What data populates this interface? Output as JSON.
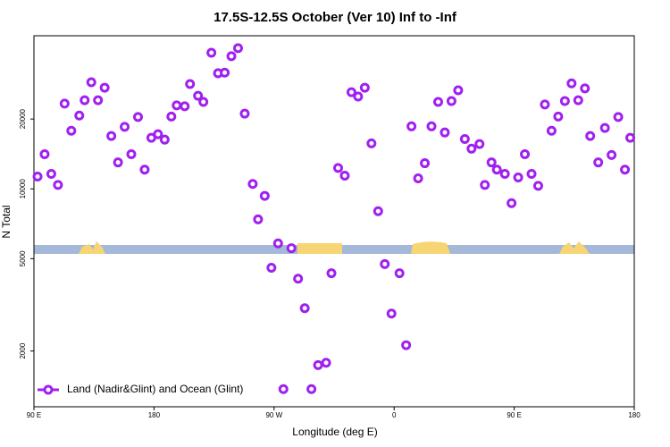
{
  "chart_data": {
    "type": "scatter",
    "title": "17.5S-12.5S October (Ver 10)   Inf to -Inf",
    "x_label": "Longitude (deg E)",
    "y_label": "N Total",
    "log_y": true,
    "xlim": [
      90,
      540
    ],
    "ylim": [
      1150,
      45700
    ],
    "xticks": [
      {
        "value": 90,
        "label": "90 E"
      },
      {
        "value": 180,
        "label": "180"
      },
      {
        "value": 270,
        "label": "90 W"
      },
      {
        "value": 360,
        "label": "0"
      },
      {
        "value": 450,
        "label": "90 E"
      },
      {
        "value": 540,
        "label": "180"
      }
    ],
    "yticks": [
      2000,
      5000,
      10000,
      20000
    ],
    "legend": "bottom-left",
    "x": [
      92.7,
      98,
      103,
      108,
      113,
      118,
      124,
      128,
      133,
      138,
      143,
      148,
      153,
      158,
      163,
      168,
      173,
      178,
      183,
      188,
      193,
      197,
      203,
      207,
      213,
      217,
      223,
      228,
      233,
      238,
      243,
      248,
      254,
      258,
      263,
      268,
      273,
      277,
      283,
      288,
      293,
      298,
      303,
      309,
      313,
      318,
      323,
      328,
      333,
      338,
      343,
      348,
      353,
      358,
      364,
      369,
      373,
      378,
      383,
      388,
      393,
      398,
      403,
      408,
      413,
      418,
      424,
      428,
      433,
      437,
      443,
      448,
      453,
      458,
      463,
      468,
      473,
      478,
      483,
      488,
      493,
      498,
      503,
      507,
      513,
      518,
      523,
      528,
      533,
      537
    ],
    "series": [
      {
        "name": "Land (Nadir&Glint) and Ocean (Glint)",
        "color": "#a020f0",
        "values": [
          11300,
          14100,
          11600,
          10400,
          23300,
          17800,
          20700,
          24100,
          28800,
          24100,
          27300,
          16900,
          13000,
          18500,
          14100,
          20400,
          12100,
          16600,
          17200,
          16300,
          20500,
          22900,
          22700,
          28300,
          25200,
          23700,
          38600,
          31500,
          31700,
          37300,
          40400,
          21100,
          10500,
          7390,
          9330,
          4570,
          5820,
          1370,
          5550,
          4100,
          3060,
          1370,
          1740,
          1780,
          4330,
          12300,
          11400,
          26100,
          25000,
          27300,
          15700,
          8010,
          4740,
          2900,
          4330,
          2120,
          18600,
          11100,
          12900,
          18600,
          23700,
          17500,
          23900,
          26600,
          16400,
          14900,
          15600,
          10400,
          13000,
          12100,
          11600,
          8680,
          11200,
          14100,
          11600,
          10300,
          23100,
          17800,
          20500,
          23900,
          28500,
          24100,
          27100,
          16900,
          13000,
          18300,
          14000,
          20400,
          12100,
          16600
        ]
      }
    ]
  }
}
